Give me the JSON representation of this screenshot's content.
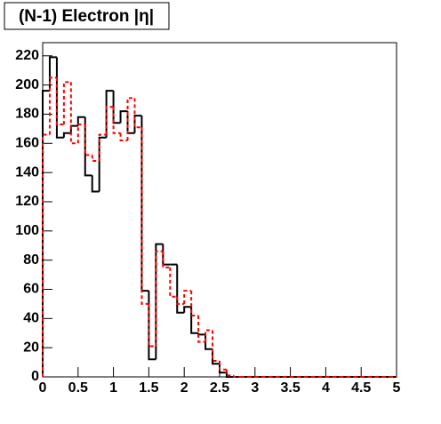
{
  "chart_data": {
    "type": "histogram",
    "title": "(N-1) Electron |η|",
    "bins": [
      0,
      0.1,
      0.2,
      0.3,
      0.4,
      0.5,
      0.6,
      0.7,
      0.8,
      0.9,
      1,
      1.1,
      1.2,
      1.3,
      1.4,
      1.5,
      1.6,
      1.7,
      1.8,
      1.9,
      2,
      2.1,
      2.2,
      2.3,
      2.4,
      2.5,
      2.6,
      2.7,
      2.8,
      2.9,
      3,
      3.1,
      3.2,
      3.3,
      3.4,
      3.5,
      3.6,
      3.7,
      3.8,
      3.9,
      4,
      4.1,
      4.2,
      4.3,
      4.4,
      4.5,
      4.6,
      4.7,
      4.8,
      4.9,
      5
    ],
    "series": [
      {
        "color": "#000000",
        "dashed": false,
        "values": [
          196,
          219,
          164,
          167,
          172,
          178,
          138,
          127,
          164,
          196,
          174,
          182,
          167,
          179,
          59,
          12,
          91,
          77,
          77,
          44,
          48,
          30,
          29,
          19,
          9,
          3,
          0,
          0,
          0,
          0,
          0,
          0,
          0,
          0,
          0,
          0,
          0,
          0,
          0,
          0,
          0,
          0,
          0,
          0,
          0,
          0,
          0,
          0,
          0,
          0
        ]
      },
      {
        "color": "#ff0000",
        "dashed": true,
        "values": [
          166,
          205,
          173,
          202,
          160,
          173,
          152,
          148,
          166,
          185,
          167,
          162,
          191,
          171,
          50,
          21,
          86,
          75,
          55,
          50,
          59,
          42,
          24,
          32,
          11,
          5,
          1,
          0,
          0,
          0,
          0,
          0,
          0,
          0,
          0,
          0,
          0,
          0,
          0,
          0,
          0,
          0,
          0,
          0,
          0,
          0,
          0,
          0,
          0,
          0
        ]
      }
    ],
    "xlim": [
      0,
      5
    ],
    "ylim": [
      0,
      229
    ],
    "xticks": [
      0,
      0.5,
      1,
      1.5,
      2,
      2.5,
      3,
      3.5,
      4,
      4.5,
      5
    ],
    "yticks": [
      0,
      20,
      40,
      60,
      80,
      100,
      120,
      140,
      160,
      180,
      200,
      220
    ]
  }
}
